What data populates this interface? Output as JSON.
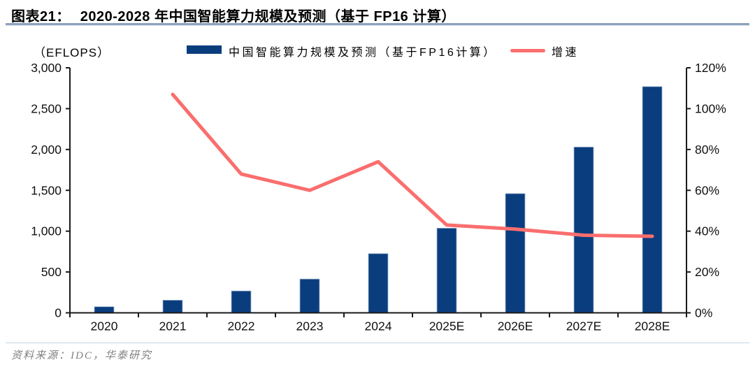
{
  "header": {
    "label": "图表21：",
    "title": "2020-2028 年中国智能算力规模及预测（基于 FP16 计算）"
  },
  "legend": {
    "axis_unit": "（EFLOPS）",
    "bar_label": "中国智能算力规模及预测（基于FP16计算）",
    "line_label": "增速"
  },
  "colors": {
    "bar": "#0A3D7E",
    "bar_edge": "#A4B8D3",
    "line": "#FA6E6E",
    "axis": "#1A1A1A",
    "tick_text": "#111111"
  },
  "chart_data": {
    "type": "bar",
    "subtype": "combo-bar-line",
    "title": "2020-2028 年中国智能算力规模及预测（基于 FP16 计算）",
    "categories": [
      "2020",
      "2021",
      "2022",
      "2023",
      "2024",
      "2025E",
      "2026E",
      "2027E",
      "2028E"
    ],
    "series": [
      {
        "name": "中国智能算力规模及预测（基于FP16计算）",
        "type": "bar",
        "axis": "left",
        "unit": "EFLOPS",
        "values": [
          75,
          155,
          268,
          414,
          725,
          1037,
          1460,
          2030,
          2770
        ]
      },
      {
        "name": "增速",
        "type": "line",
        "axis": "right",
        "unit": "%",
        "values": [
          null,
          107,
          68,
          60,
          74,
          43,
          41,
          38,
          37.5
        ]
      }
    ],
    "left_axis": {
      "label": "（EFLOPS）",
      "min": 0,
      "max": 3000,
      "step": 500
    },
    "right_axis": {
      "min": 0,
      "max": 120,
      "step": 20,
      "suffix": "%"
    },
    "grid": false,
    "legend_position": "top",
    "xlabel": "",
    "ylabel": "EFLOPS"
  },
  "source": {
    "text": "资料来源：IDC，华泰研究"
  }
}
